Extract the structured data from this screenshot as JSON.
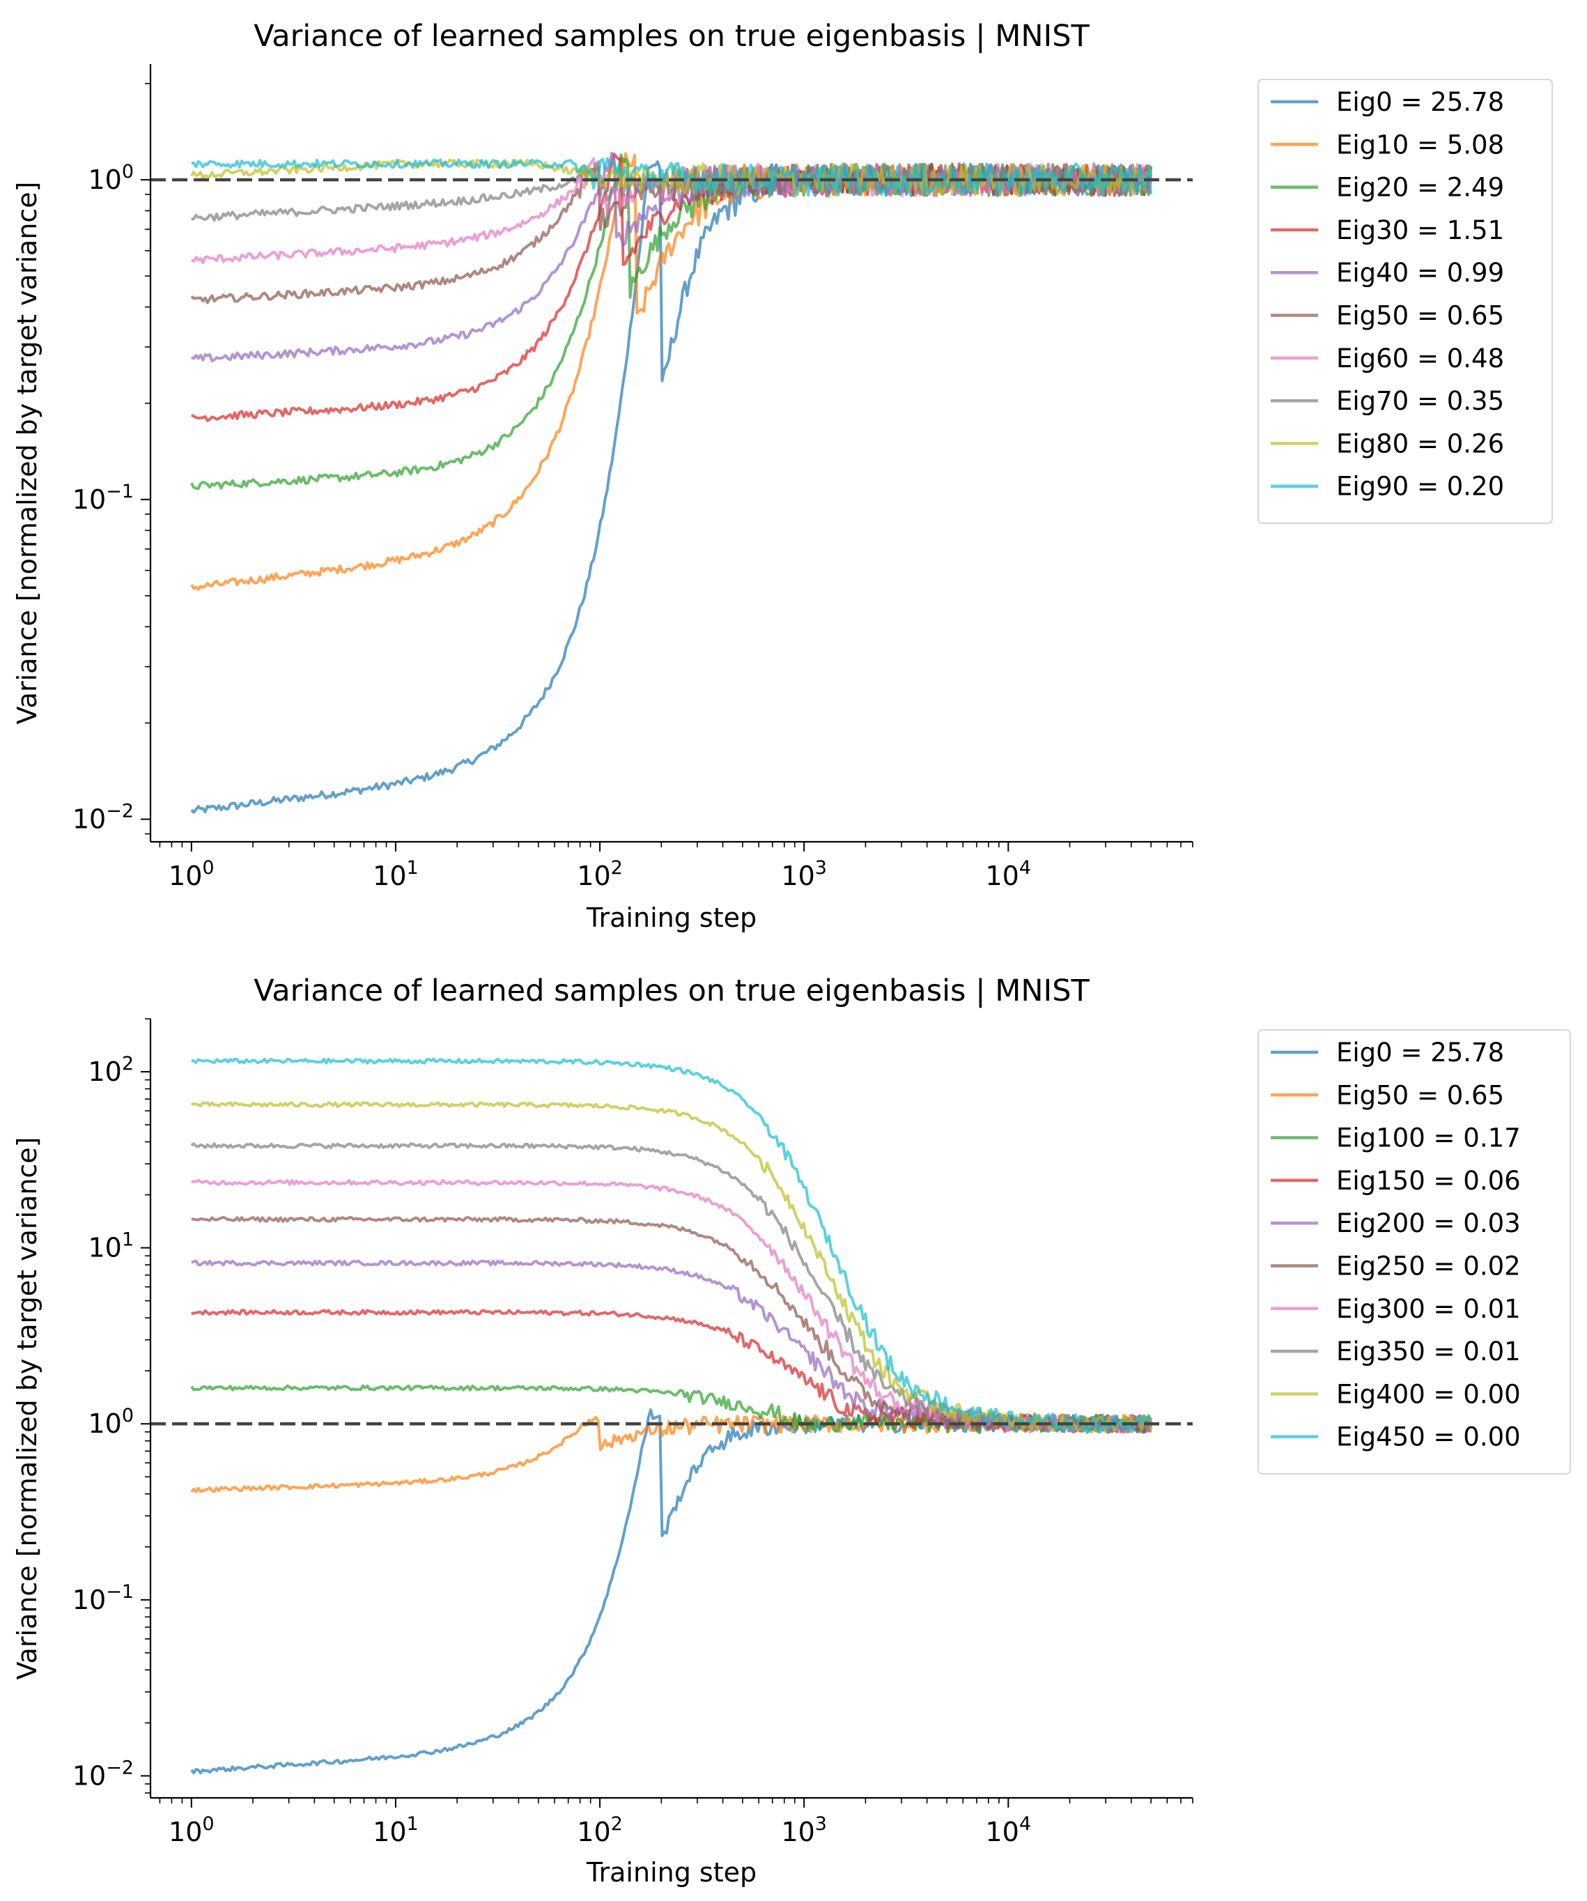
{
  "chart_data": [
    {
      "type": "line",
      "title": "Variance of learned samples on true eigenbasis | MNIST",
      "xlabel": "Training step",
      "ylabel": "Variance [normalized by target variance]",
      "xscale": "log",
      "yscale": "log",
      "xlim": [
        0.63,
        80000
      ],
      "ylim": [
        0.0085,
        2.3
      ],
      "xticks": [
        "10^0",
        "10^1",
        "10^2",
        "10^3",
        "10^4"
      ],
      "yticks": [
        "10^-2",
        "10^-1",
        "10^0"
      ],
      "reference_line": {
        "y": 1,
        "style": "dashed",
        "color": "#444444"
      },
      "legend_position": "outside-top-right",
      "grid": false,
      "series": [
        {
          "name": "Eig0 = 25.78",
          "color": "#1f77b4",
          "start": 0.0106,
          "transition_step": 200,
          "settles_at": 1.0
        },
        {
          "name": "Eig10 = 5.08",
          "color": "#ff7f0e",
          "start": 0.053,
          "transition_step": 150,
          "settles_at": 1.0
        },
        {
          "name": "Eig20 = 2.49",
          "color": "#2ca02c",
          "start": 0.11,
          "transition_step": 140,
          "settles_at": 1.0
        },
        {
          "name": "Eig30 = 1.51",
          "color": "#d62728",
          "start": 0.18,
          "transition_step": 130,
          "settles_at": 1.0
        },
        {
          "name": "Eig40 = 0.99",
          "color": "#9467bd",
          "start": 0.275,
          "transition_step": 120,
          "settles_at": 1.0
        },
        {
          "name": "Eig50 = 0.65",
          "color": "#8c564b",
          "start": 0.42,
          "transition_step": 100,
          "settles_at": 1.0
        },
        {
          "name": "Eig60 = 0.48",
          "color": "#e377c2",
          "start": 0.56,
          "transition_step": 100,
          "settles_at": 1.0
        },
        {
          "name": "Eig70 = 0.35",
          "color": "#7f7f7f",
          "start": 0.76,
          "transition_step": 100,
          "settles_at": 1.0
        },
        {
          "name": "Eig80 = 0.26",
          "color": "#bcbd22",
          "start": 1.03,
          "transition_step": 100,
          "settles_at": 1.0
        },
        {
          "name": "Eig90 = 0.20",
          "color": "#17becf",
          "start": 1.3,
          "transition_step": 100,
          "settles_at": 1.0
        }
      ]
    },
    {
      "type": "line",
      "title": "Variance of learned samples on true eigenbasis | MNIST",
      "xlabel": "Training step",
      "ylabel": "Variance [normalized by target variance]",
      "xscale": "log",
      "yscale": "log",
      "xlim": [
        0.63,
        80000
      ],
      "ylim": [
        0.0075,
        200
      ],
      "xticks": [
        "10^0",
        "10^1",
        "10^2",
        "10^3",
        "10^4"
      ],
      "yticks": [
        "10^-2",
        "10^-1",
        "10^0",
        "10^1",
        "10^2"
      ],
      "reference_line": {
        "y": 1,
        "style": "dashed",
        "color": "#444444"
      },
      "legend_position": "outside-top-right",
      "grid": false,
      "series": [
        {
          "name": "Eig0 = 25.78",
          "color": "#1f77b4",
          "start": 0.0106,
          "transition_step": 200,
          "settles_at": 1.0
        },
        {
          "name": "Eig50 = 0.65",
          "color": "#ff7f0e",
          "start": 0.42,
          "transition_step": 100,
          "settles_at": 1.0
        },
        {
          "name": "Eig100 = 0.17",
          "color": "#2ca02c",
          "start": 1.6,
          "transition_step": 300,
          "settles_at": 1.0
        },
        {
          "name": "Eig150 = 0.06",
          "color": "#d62728",
          "start": 4.3,
          "transition_step": 500,
          "settles_at": 1.0
        },
        {
          "name": "Eig200 = 0.03",
          "color": "#9467bd",
          "start": 8.2,
          "transition_step": 550,
          "settles_at": 1.0
        },
        {
          "name": "Eig250 = 0.02",
          "color": "#8c564b",
          "start": 14.5,
          "transition_step": 600,
          "settles_at": 1.0
        },
        {
          "name": "Eig300 = 0.01",
          "color": "#e377c2",
          "start": 23.5,
          "transition_step": 650,
          "settles_at": 1.0
        },
        {
          "name": "Eig350 = 0.01",
          "color": "#7f7f7f",
          "start": 38,
          "transition_step": 700,
          "settles_at": 1.0
        },
        {
          "name": "Eig400 = 0.00",
          "color": "#bcbd22",
          "start": 65,
          "transition_step": 750,
          "settles_at": 1.0
        },
        {
          "name": "Eig450 = 0.00",
          "color": "#17becf",
          "start": 115,
          "transition_step": 800,
          "settles_at": 1.0
        }
      ]
    }
  ]
}
